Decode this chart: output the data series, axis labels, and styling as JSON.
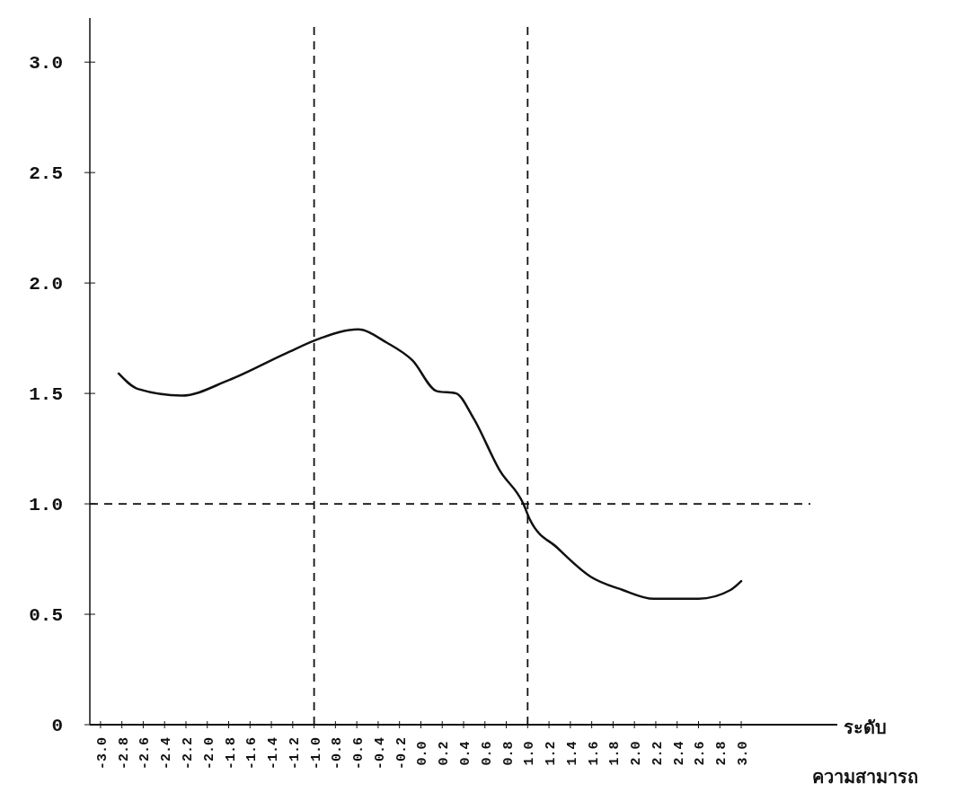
{
  "chart_data": {
    "type": "line",
    "xlabel": "ระดับ\nความสามารถ",
    "x": [
      -2.83,
      -2.65,
      -2.24,
      -1.8,
      -1.27,
      -0.94,
      -0.59,
      -0.32,
      -0.08,
      0.15,
      0.33,
      0.49,
      0.74,
      0.96,
      1.02,
      1.28,
      1.59,
      1.89,
      2.18,
      2.6,
      2.9,
      3.0
    ],
    "values": [
      1.59,
      1.52,
      1.49,
      1.56,
      1.68,
      1.75,
      1.79,
      1.73,
      1.65,
      1.51,
      1.5,
      1.39,
      1.15,
      1.0,
      0.93,
      0.8,
      0.67,
      0.61,
      0.57,
      0.57,
      0.61,
      0.65
    ],
    "color": "#111111",
    "marker": "none",
    "line_style": "solid",
    "grid": false,
    "xlim": [
      -3.1,
      3.9
    ],
    "ylim": [
      0,
      3.2
    ],
    "xticks": [
      {
        "value": -3.0,
        "label": "-3.0"
      },
      {
        "value": -2.8,
        "label": "-2.8"
      },
      {
        "value": -2.6,
        "label": "-2.6"
      },
      {
        "value": -2.4,
        "label": "-2.4"
      },
      {
        "value": -2.2,
        "label": "-2.2"
      },
      {
        "value": -2.0,
        "label": "-2.0"
      },
      {
        "value": -1.8,
        "label": "-1.8"
      },
      {
        "value": -1.6,
        "label": "-1.6"
      },
      {
        "value": -1.4,
        "label": "-1.4"
      },
      {
        "value": -1.2,
        "label": "-1.2"
      },
      {
        "value": -1.0,
        "label": "-1.0"
      },
      {
        "value": -0.8,
        "label": "-0.8"
      },
      {
        "value": -0.6,
        "label": "-0.6"
      },
      {
        "value": -0.4,
        "label": "-0.4"
      },
      {
        "value": -0.2,
        "label": "-0.2"
      },
      {
        "value": 0,
        "label": "0.0"
      },
      0.2,
      0.4,
      0.6,
      0.8,
      {
        "value": 1.0,
        "label": "1.0"
      },
      1.2,
      1.4,
      1.6,
      1.8,
      {
        "value": 2.0,
        "label": "2.0"
      },
      2.2,
      2.4,
      2.6,
      2.8,
      {
        "value": 3.0,
        "label": "3.0"
      }
    ],
    "yticks": [
      0,
      0.5,
      {
        "value": 1.0,
        "label": "1.0"
      },
      1.5,
      {
        "value": 2.0,
        "label": "2.0"
      },
      2.5,
      {
        "value": 3.0,
        "label": "3.0"
      }
    ],
    "ref_lines": [
      {
        "axis": "x",
        "value": -1.0,
        "line_style": "dashed"
      },
      {
        "axis": "x",
        "value": 1.0,
        "line_style": "dashed"
      },
      {
        "axis": "y",
        "value": 1.0,
        "line_style": "dashed"
      }
    ]
  }
}
